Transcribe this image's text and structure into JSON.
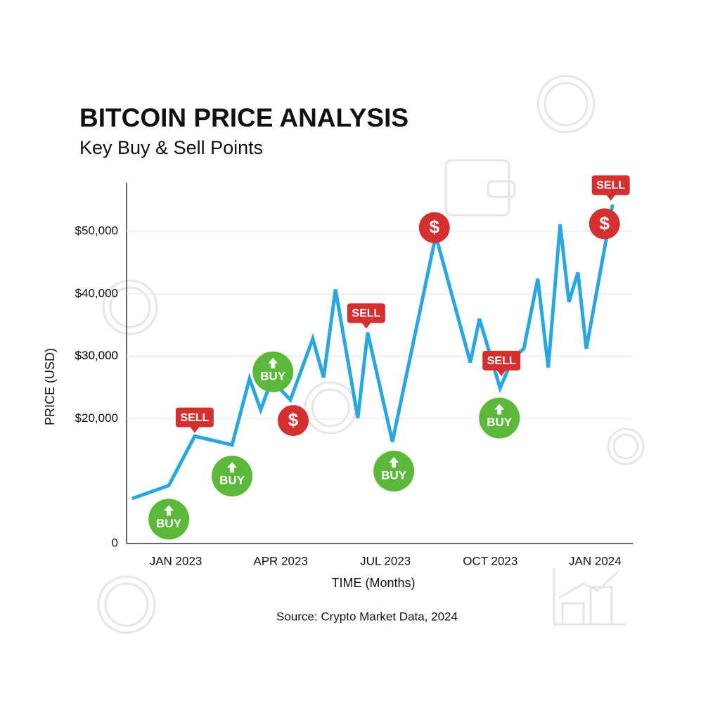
{
  "chart_data": {
    "type": "line",
    "title": "BITCOIN PRICE ANALYSIS",
    "subtitle": "Key Buy & Sell Points",
    "y_label": "PRICE (USD)",
    "x_label": "TIME (Months)",
    "source": "Source: Crypto Market Data, 2024",
    "x": [
      -1.25,
      -0.2,
      0.54,
      1.61,
      2.11,
      2.43,
      2.74,
      3.28,
      3.92,
      4.23,
      4.57,
      5.21,
      5.49,
      6.2,
      7.44,
      8.43,
      8.69,
      9.28,
      9.66,
      9.96,
      10.36,
      10.66,
      11.0,
      11.25,
      11.51,
      11.75,
      12.5
    ],
    "series": [
      {
        "color": "#2aa6e0",
        "values": [
          7200,
          9300,
          17200,
          15800,
          26400,
          21400,
          26200,
          23000,
          32800,
          26600,
          40700,
          20100,
          33800,
          16300,
          49300,
          29000,
          36000,
          24900,
          29800,
          31200,
          42400,
          28200,
          51100,
          38700,
          43400,
          31200,
          54300
        ]
      }
    ],
    "xlim": [
      -1.41,
      13.08
    ],
    "ylim": [
      0,
      58000
    ],
    "xticks": [
      {
        "value": 0,
        "label": "JAN 2023"
      },
      {
        "value": 3,
        "label": "APR 2023"
      },
      {
        "value": 6,
        "label": "JUL 2023"
      },
      {
        "value": 9,
        "label": "OCT 2023"
      },
      {
        "value": 12,
        "label": "JAN 2024"
      }
    ],
    "yticks": [
      0,
      {
        "value": 20000,
        "label": "$20,000"
      },
      {
        "value": 30000,
        "label": "$30,000"
      },
      {
        "value": 30000,
        "label": "$30,000"
      },
      {
        "value": 40000,
        "label": "$40,000"
      },
      {
        "value": 50000,
        "label": "$50,000"
      }
    ],
    "grid": true,
    "annotations": [
      {
        "label": "BUY",
        "x": -0.2,
        "y": 3900,
        "color": "#5cb83a",
        "shape": "circle"
      },
      {
        "label": "SELL",
        "x": 0.54,
        "y": 20200,
        "color": "#d3302f",
        "shape": "tag"
      },
      {
        "label": "BUY",
        "x": 1.61,
        "y": 10800,
        "color": "#5cb83a",
        "shape": "circle"
      },
      {
        "label": "BUY",
        "x": 2.78,
        "y": 27500,
        "color": "#5cb83a",
        "shape": "circle"
      },
      {
        "label": "$",
        "x": 3.36,
        "y": 19700,
        "color": "#d3302f",
        "shape": "circle"
      },
      {
        "label": "SELL",
        "x": 5.45,
        "y": 36900,
        "color": "#d3302f",
        "shape": "tag"
      },
      {
        "label": "BUY",
        "x": 6.24,
        "y": 11600,
        "color": "#5cb83a",
        "shape": "circle"
      },
      {
        "label": "$",
        "x": 7.4,
        "y": 50600,
        "color": "#d3302f",
        "shape": "circle"
      },
      {
        "label": "SELL",
        "x": 9.32,
        "y": 29300,
        "color": "#d3302f",
        "shape": "tag"
      },
      {
        "label": "BUY",
        "x": 9.26,
        "y": 20100,
        "color": "#5cb83a",
        "shape": "circle"
      },
      {
        "label": "$",
        "x": 12.27,
        "y": 51200,
        "color": "#d3302f",
        "shape": "circle"
      },
      {
        "label": "SELL",
        "x": 12.45,
        "y": 57400,
        "color": "#d3302f",
        "shape": "tag"
      }
    ]
  }
}
